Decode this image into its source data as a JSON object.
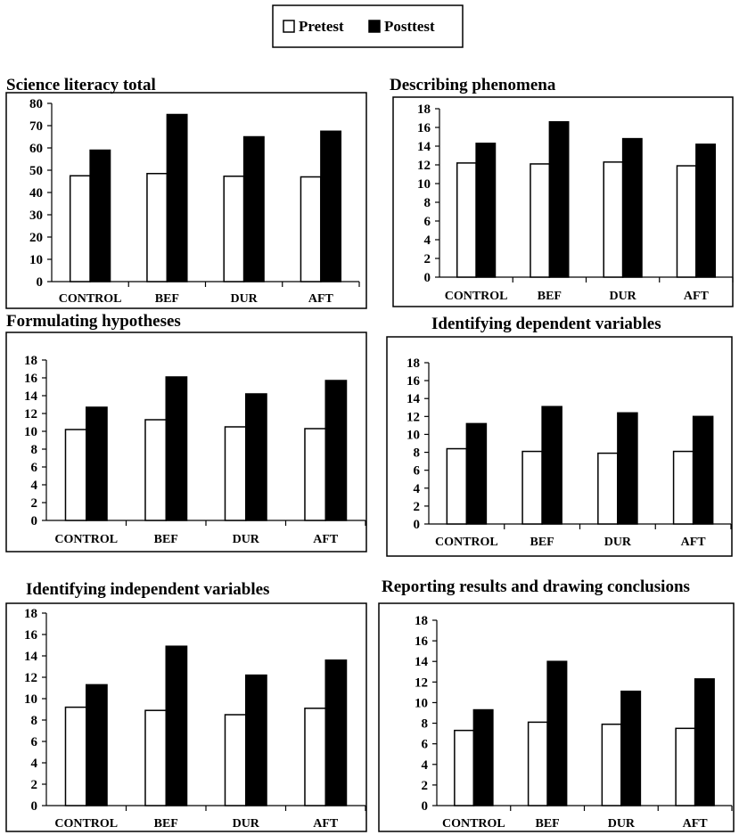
{
  "legend": {
    "entries": [
      {
        "label": "Pretest",
        "color": "#ffffff"
      },
      {
        "label": "Posttest",
        "color": "#000000"
      }
    ]
  },
  "chart_data": [
    {
      "type": "bar",
      "title": "Science literacy total",
      "categories": [
        "CONTROL",
        "BEF",
        "DUR",
        "AFT"
      ],
      "series": [
        {
          "name": "Pretest",
          "values": [
            47.5,
            48.5,
            47.3,
            47
          ]
        },
        {
          "name": "Posttest",
          "values": [
            59,
            75,
            65,
            67.5
          ]
        }
      ],
      "ylim": [
        0,
        80
      ],
      "yticks": [
        0,
        10,
        20,
        30,
        40,
        50,
        60,
        70,
        80
      ]
    },
    {
      "type": "bar",
      "title": "Describing phenomena",
      "categories": [
        "CONTROL",
        "BEF",
        "DUR",
        "AFT"
      ],
      "series": [
        {
          "name": "Pretest",
          "values": [
            12.2,
            12.1,
            12.3,
            11.9
          ]
        },
        {
          "name": "Posttest",
          "values": [
            14.3,
            16.6,
            14.8,
            14.2
          ]
        }
      ],
      "ylim": [
        0,
        18
      ],
      "yticks": [
        0,
        2,
        4,
        6,
        8,
        10,
        12,
        14,
        16,
        18
      ]
    },
    {
      "type": "bar",
      "title": "Formulating hypotheses",
      "categories": [
        "CONTROL",
        "BEF",
        "DUR",
        "AFT"
      ],
      "series": [
        {
          "name": "Pretest",
          "values": [
            10.2,
            11.3,
            10.5,
            10.3
          ]
        },
        {
          "name": "Posttest",
          "values": [
            12.7,
            16.1,
            14.2,
            15.7
          ]
        }
      ],
      "ylim": [
        0,
        18
      ],
      "yticks": [
        0,
        2,
        4,
        6,
        8,
        10,
        12,
        14,
        16,
        18
      ]
    },
    {
      "type": "bar",
      "title": "Identifying dependent variables",
      "categories": [
        "CONTROL",
        "BEF",
        "DUR",
        "AFT"
      ],
      "series": [
        {
          "name": "Pretest",
          "values": [
            8.4,
            8.1,
            7.9,
            8.1
          ]
        },
        {
          "name": "Posttest",
          "values": [
            11.2,
            13.1,
            12.4,
            12
          ]
        }
      ],
      "ylim": [
        0,
        18
      ],
      "yticks": [
        0,
        2,
        4,
        6,
        8,
        10,
        12,
        14,
        16,
        18
      ]
    },
    {
      "type": "bar",
      "title": "Identifying independent variables",
      "categories": [
        "CONTROL",
        "BEF",
        "DUR",
        "AFT"
      ],
      "series": [
        {
          "name": "Pretest",
          "values": [
            9.2,
            8.9,
            8.5,
            9.1
          ]
        },
        {
          "name": "Posttest",
          "values": [
            11.3,
            14.9,
            12.2,
            13.6
          ]
        }
      ],
      "ylim": [
        0,
        18
      ],
      "yticks": [
        0,
        2,
        4,
        6,
        8,
        10,
        12,
        14,
        16,
        18
      ]
    },
    {
      "type": "bar",
      "title": "Reporting results and drawing conclusions",
      "categories": [
        "CONTROL",
        "BEF",
        "DUR",
        "AFT"
      ],
      "series": [
        {
          "name": "Pretest",
          "values": [
            7.3,
            8.1,
            7.9,
            7.5
          ]
        },
        {
          "name": "Posttest",
          "values": [
            9.3,
            14,
            11.1,
            12.3
          ]
        }
      ],
      "ylim": [
        0,
        18
      ],
      "yticks": [
        0,
        2,
        4,
        6,
        8,
        10,
        12,
        14,
        16,
        18
      ]
    }
  ]
}
